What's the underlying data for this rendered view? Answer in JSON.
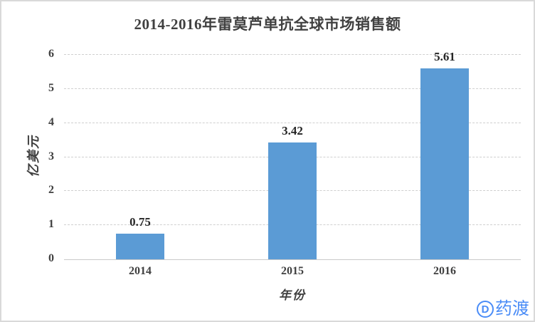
{
  "chart_data": {
    "type": "bar",
    "title": "2014-2016年雷莫芦单抗全球市场销售额",
    "categories": [
      "2014",
      "2015",
      "2016"
    ],
    "values": [
      0.75,
      3.42,
      5.61
    ],
    "data_labels": [
      "0.75",
      "3.42",
      "5.61"
    ],
    "xlabel": "年份",
    "ylabel": "亿美元",
    "ylim": [
      0,
      6
    ],
    "yticks": [
      0,
      1,
      2,
      3,
      4,
      5,
      6
    ],
    "grid": true,
    "legend_position": "none",
    "bar_color": "#5B9BD5",
    "gridline_color": "#cfcfcf",
    "title_color": "#404040",
    "label_color": "#262626"
  },
  "watermark": {
    "logo_letter": "D",
    "logo_text": "药渡",
    "color": "#4a8cf7"
  }
}
